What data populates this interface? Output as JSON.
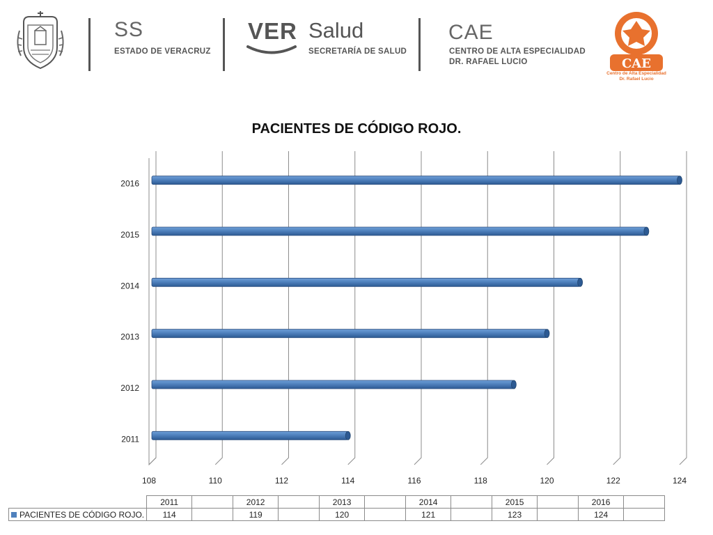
{
  "header": {
    "ss": {
      "abbr": "SS",
      "sub": "ESTADO DE VERACRUZ"
    },
    "ver_salud": {
      "ver": "VER",
      "salud": "Salud",
      "sub": "SECRETARÍA DE SALUD"
    },
    "cae": {
      "abbr": "CAE",
      "sub_line1": "CENTRO DE ALTA ESPECIALIDAD",
      "sub_line2": "DR. RAFAEL LUCIO"
    },
    "cae_logo": {
      "line1": "Centro de Alta Especialidad",
      "line2": "Dr. Rafael Lucio",
      "color": "#e8712e",
      "icon": "cae-emblem-icon"
    },
    "state_seal_icon": "veracruz-coat-of-arms-icon"
  },
  "chart_data": {
    "type": "bar",
    "orientation": "horizontal",
    "title": "PACIENTES DE CÓDIGO ROJO.",
    "categories": [
      "2011",
      "2012",
      "2013",
      "2014",
      "2015",
      "2016"
    ],
    "series": [
      {
        "name": "PACIENTES DE CÓDIGO ROJO.",
        "values": [
          114,
          119,
          120,
          121,
          123,
          124
        ],
        "color": "#4f81bd"
      }
    ],
    "xlim": [
      108,
      124
    ],
    "xticks": [
      "108",
      "110",
      "112",
      "114",
      "116",
      "118",
      "120",
      "122",
      "124"
    ],
    "grid": true,
    "xlabel": "",
    "ylabel": ""
  },
  "table": {
    "years": [
      "2011",
      "2012",
      "2013",
      "2014",
      "2015",
      "2016"
    ],
    "label": "PACIENTES DE CÓDIGO ROJO.",
    "values": [
      "114",
      "119",
      "120",
      "121",
      "123",
      "124"
    ]
  }
}
